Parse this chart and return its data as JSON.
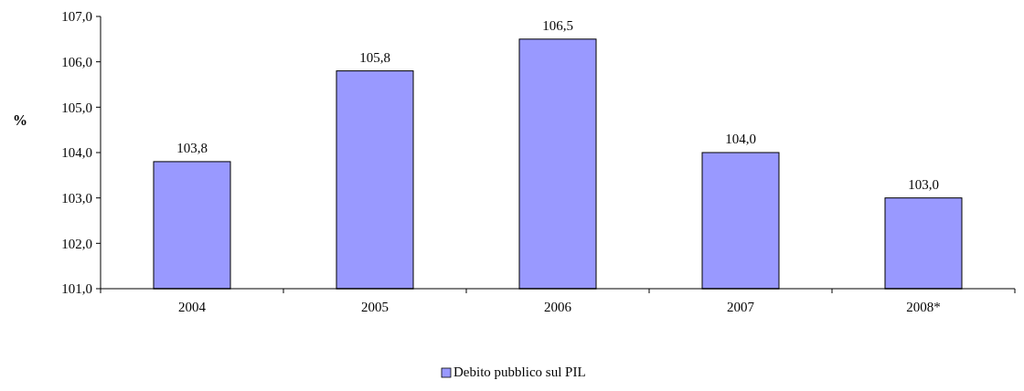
{
  "chart_data": {
    "type": "bar",
    "ylabel": "%",
    "categories": [
      "2004",
      "2005",
      "2006",
      "2007",
      "2008*"
    ],
    "series": [
      {
        "name": "Debito pubblico sul PIL",
        "color": "#9999ff",
        "values": [
          103.8,
          105.8,
          106.5,
          104.0,
          103.0
        ],
        "value_labels": [
          "103,8",
          "105,8",
          "106,5",
          "104,0",
          "103,0"
        ]
      }
    ],
    "ylim": [
      101,
      107
    ],
    "yticks": [
      {
        "value": 101,
        "label": "101,0"
      },
      {
        "value": 102,
        "label": "102,0"
      },
      {
        "value": 103,
        "label": "103,0"
      },
      {
        "value": 104,
        "label": "104,0"
      },
      {
        "value": 105,
        "label": "105,0"
      },
      {
        "value": 106,
        "label": "106,0"
      },
      {
        "value": 107,
        "label": "107,0"
      }
    ],
    "grid": false,
    "legend": "bottom"
  }
}
